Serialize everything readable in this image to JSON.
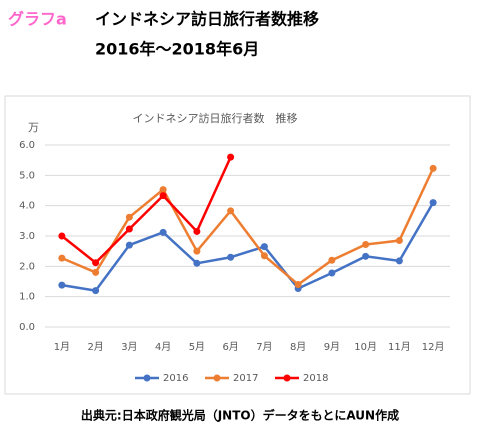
{
  "header": {
    "tag": "グラフa",
    "title": "インドネシア訪日旅行者数推移",
    "subtitle": "2016年～2018年6月"
  },
  "chart_data": {
    "type": "line",
    "title": "インドネシア訪日旅行者数　推移",
    "y_label": "万",
    "categories": [
      "1月",
      "2月",
      "3月",
      "4月",
      "5月",
      "6月",
      "7月",
      "8月",
      "9月",
      "10月",
      "11月",
      "12月"
    ],
    "series": [
      {
        "name": "2016",
        "color": "#4472c4",
        "values": [
          1.38,
          1.2,
          2.7,
          3.12,
          2.1,
          2.3,
          2.65,
          1.27,
          1.78,
          2.33,
          2.18,
          4.1
        ]
      },
      {
        "name": "2017",
        "color": "#ed7d31",
        "values": [
          2.27,
          1.8,
          3.62,
          4.53,
          2.5,
          3.83,
          2.35,
          1.4,
          2.2,
          2.72,
          2.85,
          5.23
        ]
      },
      {
        "name": "2018",
        "color": "#ff0000",
        "values": [
          3.0,
          2.12,
          3.23,
          4.33,
          3.15,
          5.6,
          null,
          null,
          null,
          null,
          null,
          null
        ]
      }
    ],
    "ylim": [
      0,
      6
    ],
    "yticks": [
      {
        "value": 0,
        "label": "0.0"
      },
      {
        "value": 1,
        "label": "1.0"
      },
      {
        "value": 2,
        "label": "2.0"
      },
      {
        "value": 3,
        "label": "3.0"
      },
      {
        "value": 4,
        "label": "4.0"
      },
      {
        "value": 5,
        "label": "5.0"
      },
      {
        "value": 6,
        "label": "6.0"
      }
    ],
    "grid": true,
    "legend": "bottom"
  },
  "footer": "出典元:日本政府観光局（JNTO）データをもとにAUN作成"
}
